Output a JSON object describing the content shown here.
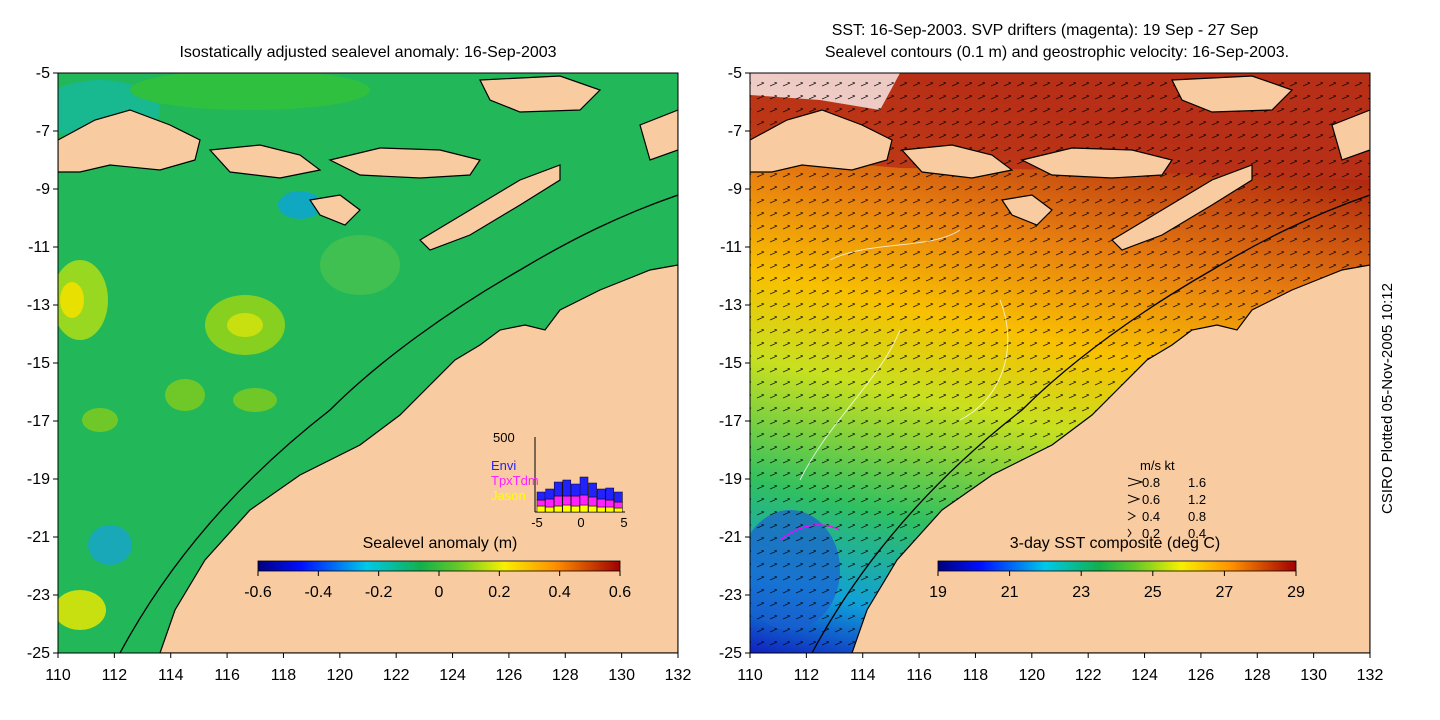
{
  "left_panel": {
    "title": "Isostatically adjusted sealevel anomaly: 16-Sep-2003",
    "y_ticks": [
      "-5",
      "-7",
      "-9",
      "-11",
      "-13",
      "-15",
      "-17",
      "-19",
      "-21",
      "-23",
      "-25"
    ],
    "x_ticks": [
      "110",
      "112",
      "114",
      "116",
      "118",
      "120",
      "122",
      "124",
      "126",
      "128",
      "130",
      "132"
    ],
    "colorbar": {
      "label": "Sealevel anomaly (m)",
      "ticks": [
        "-0.6",
        "-0.4",
        "-0.2",
        "0",
        "0.2",
        "0.4",
        "0.6"
      ],
      "range": [
        -0.6,
        0.6
      ]
    },
    "inset_histogram": {
      "ymax_label": "500",
      "x_ticks": [
        "-5",
        "0",
        "5"
      ],
      "legend": [
        {
          "name": "Envi",
          "color": "#2222ff"
        },
        {
          "name": "TpxTdm",
          "color": "#ff22ff"
        },
        {
          "name": "Jason",
          "color": "#ffff00"
        }
      ]
    }
  },
  "right_panel": {
    "title_line1": "SST: 16-Sep-2003. SVP drifters (magenta): 19 Sep - 27 Sep",
    "title_line2": "Sealevel contours (0.1 m) and geostrophic velocity: 16-Sep-2003.",
    "y_ticks": [
      "-5",
      "-7",
      "-9",
      "-11",
      "-13",
      "-15",
      "-17",
      "-19",
      "-21",
      "-23",
      "-25"
    ],
    "x_ticks": [
      "110",
      "112",
      "114",
      "116",
      "118",
      "120",
      "122",
      "124",
      "126",
      "128",
      "130",
      "132"
    ],
    "velocity_legend": {
      "header": "m/s  kt",
      "rows": [
        {
          "ms": "0.8",
          "kt": "1.6"
        },
        {
          "ms": "0.6",
          "kt": "1.2"
        },
        {
          "ms": "0.4",
          "kt": "0.8"
        },
        {
          "ms": "0.2",
          "kt": "0.4"
        }
      ]
    },
    "colorbar": {
      "label": "3-day SST composite (deg C)",
      "ticks": [
        "19",
        "21",
        "23",
        "25",
        "27",
        "29"
      ],
      "range": [
        19,
        29
      ]
    }
  },
  "credit": "CSIRO Plotted 05-Nov-2005 10:12",
  "colors": {
    "land": "#f9cba0",
    "sea_anomaly": "#22b85a",
    "sst_warm": "#c8501a"
  }
}
